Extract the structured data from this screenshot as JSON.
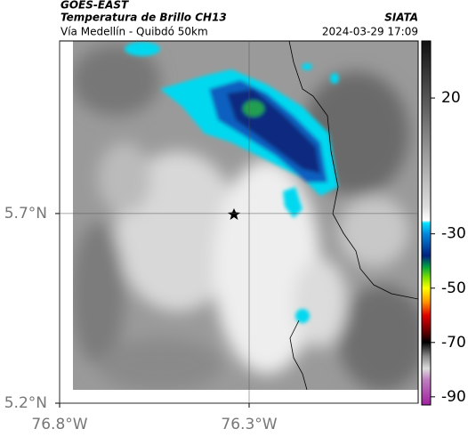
{
  "header": {
    "title": "GOES-EAST",
    "subtitle": "Temperatura de Brillo CH13",
    "source": "SIATA",
    "route": "Vía Medellín - Quibdó 50km",
    "timestamp": "2024-03-29 17:09"
  },
  "map": {
    "lat_lim": [
      5.2,
      6.155
    ],
    "lon_lim": [
      -76.8,
      -75.854
    ],
    "lat_ticks": [
      {
        "value": 5.7,
        "label": "5.7°N"
      },
      {
        "value": 5.2,
        "label": "5.2°N"
      }
    ],
    "lon_ticks": [
      {
        "value": -76.8,
        "label": "76.8°W"
      },
      {
        "value": -76.3,
        "label": "76.3°W"
      }
    ],
    "grid": true
  },
  "colorbar": {
    "range": [
      -93,
      41
    ],
    "ticks": [
      20,
      -30,
      -50,
      -70,
      -90
    ]
  }
}
